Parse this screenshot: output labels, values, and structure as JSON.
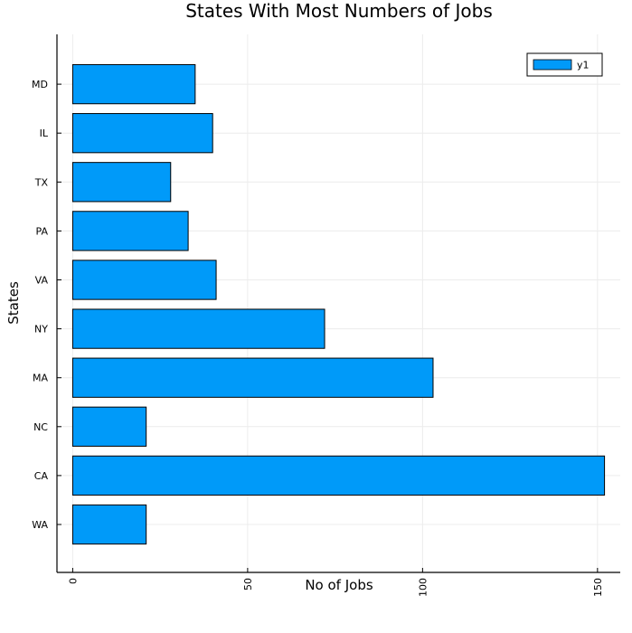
{
  "chart_data": {
    "type": "bar",
    "orientation": "horizontal",
    "title": "States With Most Numbers of Jobs",
    "xlabel": "No of Jobs",
    "ylabel": "States",
    "categories": [
      "WA",
      "CA",
      "NC",
      "MA",
      "NY",
      "VA",
      "PA",
      "TX",
      "IL",
      "MD"
    ],
    "series": [
      {
        "name": "y1",
        "values": [
          21,
          152,
          21,
          103,
          72,
          41,
          33,
          28,
          40,
          35
        ]
      }
    ],
    "xlim": [
      -4.5,
      156.5
    ],
    "xticks": [
      0,
      50,
      100,
      150
    ],
    "xtick_labels": [
      "0",
      "50",
      "100",
      "150"
    ],
    "grid": true,
    "legend_position": "top-right",
    "colors": {
      "bar": "#009af9",
      "edge": "#000000",
      "grid": "#ececec"
    }
  }
}
